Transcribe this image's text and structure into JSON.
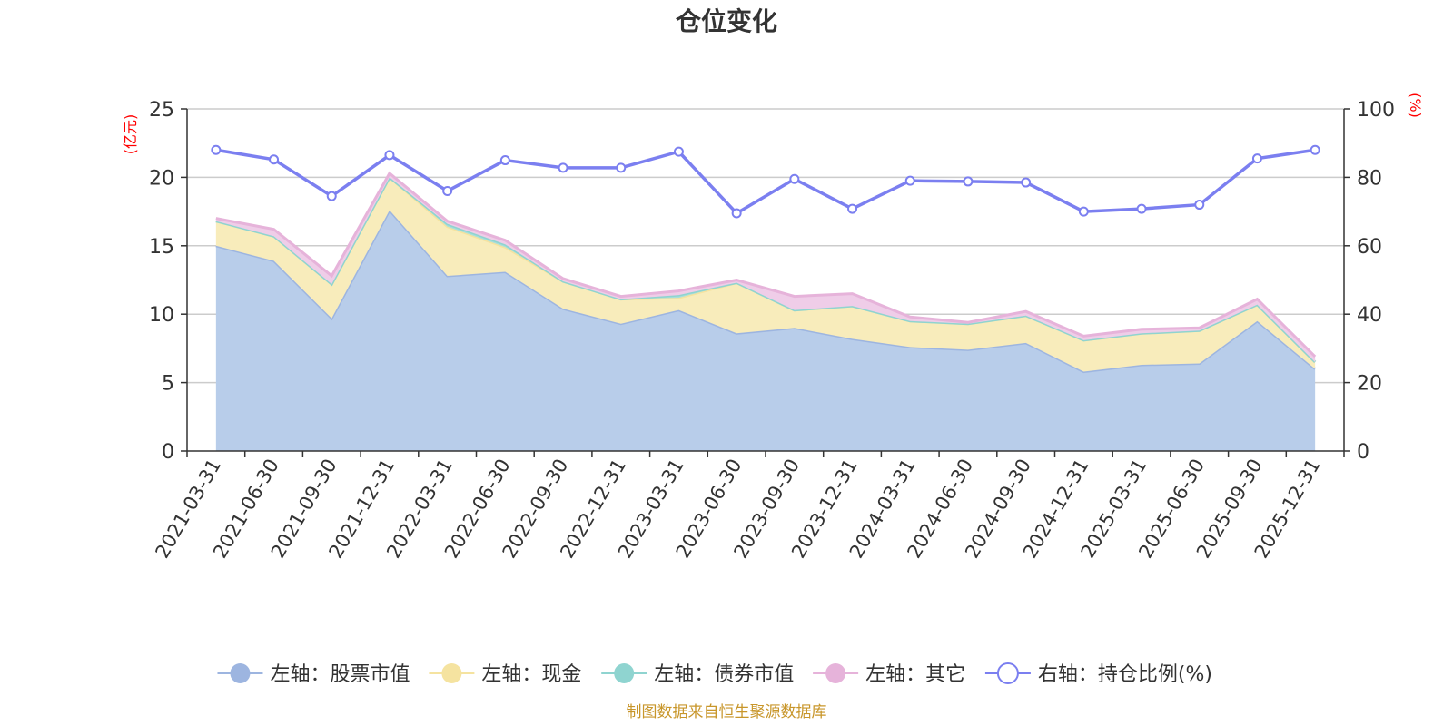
{
  "chart_data": {
    "type": "area",
    "title": "仓位变化",
    "left_axis_unit": "(亿元)",
    "right_axis_unit": "(%)",
    "categories": [
      "2021-03-31",
      "2021-06-30",
      "2021-09-30",
      "2021-12-31",
      "2022-03-31",
      "2022-06-30",
      "2022-09-30",
      "2022-12-31",
      "2023-03-31",
      "2023-06-30",
      "2023-09-30",
      "2023-12-31",
      "2024-03-31",
      "2024-06-30",
      "2024-09-30",
      "2024-12-31",
      "2025-03-31",
      "2025-06-30",
      "2025-09-30",
      "2025-12-31"
    ],
    "left_ylim": [
      0,
      25
    ],
    "left_ticks": [
      0,
      5,
      10,
      15,
      20,
      25
    ],
    "right_ylim": [
      0,
      100
    ],
    "right_ticks": [
      0,
      20,
      40,
      60,
      80,
      100
    ],
    "stacked_series": [
      {
        "name": "左轴：股票市值",
        "axis": "left",
        "line_color": "#9db5e0",
        "fill_color": "#b8cdea",
        "values": [
          15.0,
          13.9,
          9.7,
          17.6,
          12.8,
          13.1,
          10.4,
          9.3,
          10.3,
          8.6,
          9.0,
          8.2,
          7.6,
          7.4,
          7.9,
          5.8,
          6.3,
          6.4,
          9.5,
          6.0
        ]
      },
      {
        "name": "左轴：现金",
        "axis": "left",
        "line_color": "#f5e3a0",
        "fill_color": "#f8ecbb",
        "values": [
          1.8,
          1.8,
          2.5,
          2.4,
          3.6,
          1.8,
          2.0,
          1.8,
          0.9,
          3.7,
          1.3,
          2.4,
          1.9,
          1.9,
          2.0,
          2.3,
          2.3,
          2.4,
          1.2,
          0.5
        ]
      },
      {
        "name": "左轴：债券市值",
        "axis": "left",
        "line_color": "#8fd4d0",
        "fill_color": "#a8dfdb",
        "values": [
          0.0,
          0.0,
          0.0,
          0.0,
          0.2,
          0.2,
          0.0,
          0.0,
          0.2,
          0.0,
          0.0,
          0.0,
          0.0,
          0.0,
          0.0,
          0.0,
          0.0,
          0.0,
          0.0,
          0.0
        ]
      },
      {
        "name": "左轴：其它",
        "axis": "left",
        "line_color": "#e6b3da",
        "fill_color": "#efcde8",
        "values": [
          0.2,
          0.5,
          0.6,
          0.3,
          0.2,
          0.3,
          0.2,
          0.2,
          0.3,
          0.2,
          1.0,
          0.9,
          0.3,
          0.1,
          0.3,
          0.3,
          0.3,
          0.2,
          0.4,
          0.4
        ]
      }
    ],
    "line_series": {
      "name": "右轴：持仓比例(%)",
      "axis": "right",
      "color": "#7b7ff0",
      "values": [
        88.0,
        85.2,
        74.5,
        86.5,
        76.0,
        85.0,
        82.8,
        82.8,
        87.5,
        69.5,
        79.5,
        70.8,
        79.0,
        78.8,
        78.5,
        70.0,
        70.8,
        72.0,
        85.5,
        88.0
      ]
    },
    "legend_position": "bottom",
    "grid": true
  },
  "source_note": "制图数据来自恒生聚源数据库"
}
